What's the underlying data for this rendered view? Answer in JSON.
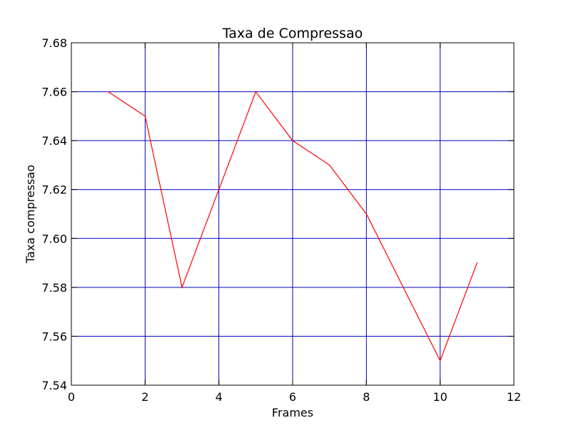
{
  "chart_data": {
    "type": "line",
    "title": "Taxa de Compressao",
    "xlabel": "Frames",
    "ylabel": "Taxa compressao",
    "xlim": [
      0,
      12
    ],
    "ylim": [
      7.54,
      7.68
    ],
    "xticks": [
      "0",
      "2",
      "4",
      "6",
      "8",
      "10",
      "12"
    ],
    "yticks": [
      "7.54",
      "7.56",
      "7.58",
      "7.60",
      "7.62",
      "7.64",
      "7.66",
      "7.68"
    ],
    "grid": true,
    "grid_color": "#0000bf",
    "series": [
      {
        "color": "#ff0000",
        "x": [
          1,
          2,
          3,
          4,
          5,
          6,
          7,
          8,
          9,
          10,
          11
        ],
        "y": [
          7.66,
          7.65,
          7.58,
          7.62,
          7.66,
          7.64,
          7.63,
          7.61,
          7.58,
          7.55,
          7.59
        ]
      }
    ]
  }
}
